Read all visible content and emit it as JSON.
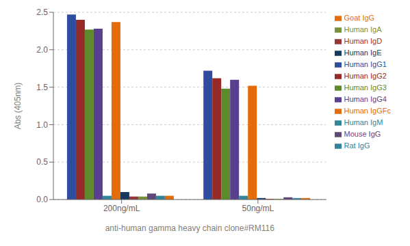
{
  "chart_data": {
    "type": "bar",
    "categories": [
      "200ng/mL",
      "50ng/mL"
    ],
    "series": [
      {
        "name": "Human IgG1",
        "color": "#2F4D9E",
        "values": [
          2.47,
          1.72
        ]
      },
      {
        "name": "Human IgG2",
        "color": "#952A29",
        "values": [
          2.4,
          1.62
        ]
      },
      {
        "name": "Human IgG3",
        "color": "#5D8A2A",
        "values": [
          2.27,
          1.48
        ]
      },
      {
        "name": "Human IgG4",
        "color": "#5B3F8F",
        "values": [
          2.28,
          1.6
        ]
      },
      {
        "name": "Human IgM",
        "color": "#31869B",
        "values": [
          0.05,
          0.05
        ]
      },
      {
        "name": "Human IgGFc",
        "color": "#E46C0A",
        "values": [
          2.37,
          1.52
        ]
      },
      {
        "name": "Human IgE",
        "color": "#17375E",
        "values": [
          0.1,
          0.02
        ]
      },
      {
        "name": "Human IgD",
        "color": "#963634",
        "values": [
          0.04,
          0.01
        ]
      },
      {
        "name": "Human IgA",
        "color": "#76923C",
        "values": [
          0.04,
          0.01
        ]
      },
      {
        "name": "Mouse IgG",
        "color": "#60497A",
        "values": [
          0.08,
          0.03
        ]
      },
      {
        "name": "Rat IgG",
        "color": "#31849B",
        "values": [
          0.05,
          0.02
        ]
      },
      {
        "name": "Goat IgG",
        "color": "#E46C0A",
        "values": [
          0.05,
          0.02
        ]
      }
    ],
    "xlabel": "anti-human gamma heavy chain clone#RM116",
    "ylabel": "Abs (405nm)",
    "ylim": [
      0,
      2.5
    ],
    "yticks": [
      {
        "value": 0,
        "label": "0.0"
      },
      0.5,
      {
        "value": 1.0,
        "label": "1.0"
      },
      1.5,
      {
        "value": 2.0,
        "label": "2.0"
      },
      2.5
    ],
    "grid": true,
    "legend": "right"
  }
}
